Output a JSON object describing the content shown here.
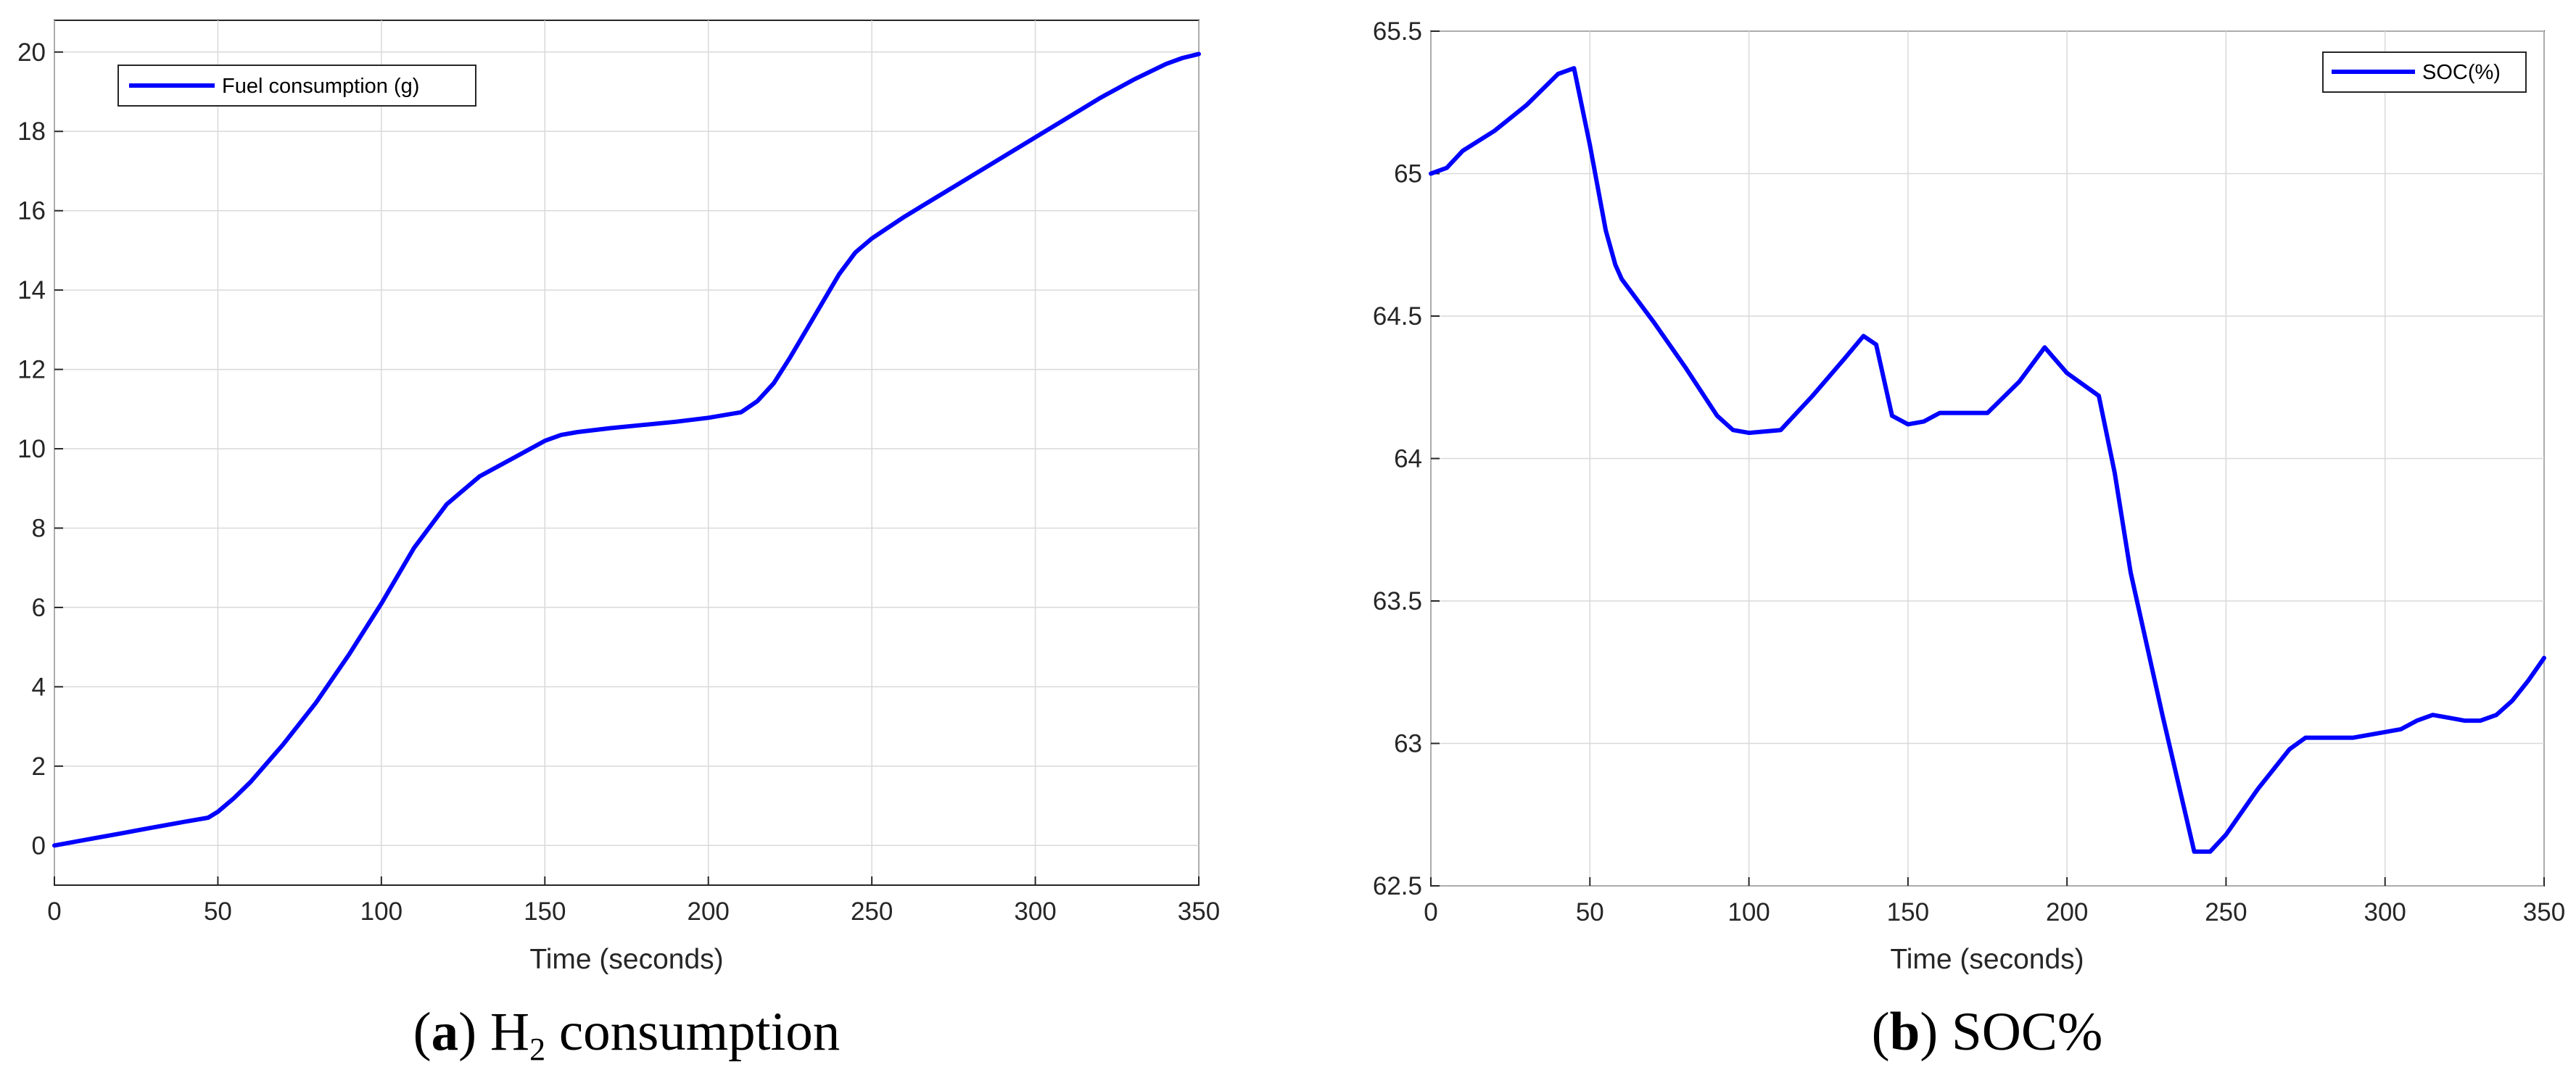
{
  "chart_data": [
    {
      "type": "line",
      "xlabel": "Time (seconds)",
      "ylabel": "",
      "xlim": [
        0,
        350
      ],
      "ylim": [
        -1,
        20.8
      ],
      "xticks": [
        0,
        50,
        100,
        150,
        200,
        250,
        300,
        350
      ],
      "yticks": [
        0,
        2,
        4,
        6,
        8,
        10,
        12,
        14,
        16,
        18,
        20
      ],
      "grid": true,
      "legend_position": "top-left",
      "series_color": "#0000ff",
      "series": [
        {
          "name": "Fuel consumption (g)",
          "x": [
            0,
            10,
            20,
            30,
            40,
            47,
            50,
            55,
            60,
            70,
            80,
            90,
            100,
            110,
            120,
            130,
            140,
            150,
            155,
            160,
            170,
            180,
            190,
            200,
            210,
            215,
            220,
            225,
            230,
            240,
            245,
            250,
            260,
            270,
            280,
            290,
            300,
            310,
            320,
            330,
            340,
            345,
            350
          ],
          "y": [
            0,
            0.15,
            0.3,
            0.45,
            0.6,
            0.7,
            0.85,
            1.2,
            1.6,
            2.55,
            3.6,
            4.8,
            6.1,
            7.5,
            8.6,
            9.3,
            9.75,
            10.2,
            10.35,
            10.42,
            10.52,
            10.6,
            10.68,
            10.78,
            10.92,
            11.2,
            11.65,
            12.3,
            13.0,
            14.4,
            14.95,
            15.3,
            15.85,
            16.35,
            16.85,
            17.35,
            17.85,
            18.35,
            18.85,
            19.3,
            19.7,
            19.85,
            19.95
          ]
        }
      ]
    },
    {
      "type": "line",
      "xlabel": "Time (seconds)",
      "ylabel": "",
      "xlim": [
        0,
        350
      ],
      "ylim": [
        62.5,
        65.5
      ],
      "xticks": [
        0,
        50,
        100,
        150,
        200,
        250,
        300,
        350
      ],
      "yticks": [
        62.5,
        63,
        63.5,
        64,
        64.5,
        65,
        65.5
      ],
      "ytick_labels": [
        "62.5",
        "63",
        "63.5",
        "64",
        "64.5",
        "65",
        "65.5"
      ],
      "grid": true,
      "legend_position": "top-right",
      "series_color": "#0000ff",
      "series": [
        {
          "name": "SOC(%)",
          "x": [
            0,
            5,
            10,
            20,
            30,
            40,
            45,
            50,
            55,
            58,
            60,
            70,
            80,
            90,
            95,
            100,
            110,
            120,
            130,
            136,
            140,
            145,
            150,
            155,
            160,
            170,
            175,
            185,
            193,
            200,
            210,
            215,
            220,
            230,
            240,
            245,
            250,
            260,
            270,
            275,
            280,
            290,
            300,
            305,
            310,
            315,
            320,
            325,
            330,
            335,
            340,
            345,
            350
          ],
          "y": [
            65.0,
            65.02,
            65.08,
            65.15,
            65.24,
            65.35,
            65.37,
            65.1,
            64.8,
            64.68,
            64.63,
            64.48,
            64.32,
            64.15,
            64.1,
            64.09,
            64.1,
            64.22,
            64.35,
            64.43,
            64.4,
            64.15,
            64.12,
            64.13,
            64.16,
            64.16,
            64.16,
            64.27,
            64.39,
            64.3,
            64.22,
            63.95,
            63.6,
            63.1,
            62.62,
            62.62,
            62.68,
            62.84,
            62.98,
            63.02,
            63.02,
            63.02,
            63.04,
            63.05,
            63.08,
            63.1,
            63.09,
            63.08,
            63.08,
            63.1,
            63.15,
            63.22,
            63.3
          ]
        }
      ]
    }
  ],
  "captions": [
    {
      "label": "a",
      "text_before_sub": " H",
      "sub": "2",
      "text_after_sub": " consumption"
    },
    {
      "label": "b",
      "text": " SOC%"
    }
  ]
}
